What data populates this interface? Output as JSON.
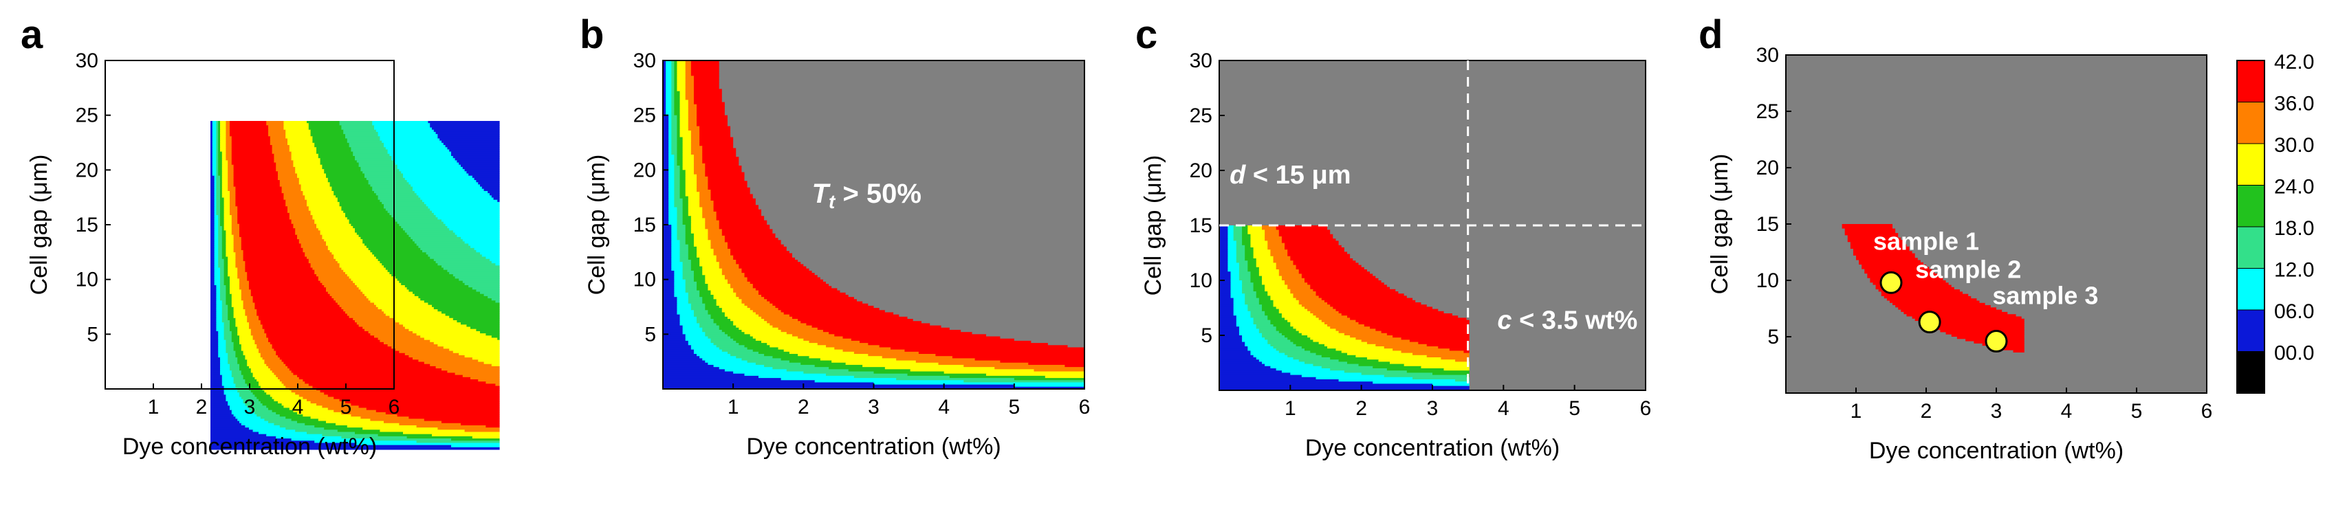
{
  "colors": {
    "levels": [
      "#000000",
      "#0b18d8",
      "#00ffff",
      "#33e08a",
      "#22c21e",
      "#ffff00",
      "#ff8000",
      "#ff0000"
    ],
    "masked": "#808080",
    "dashed": "#ffffff",
    "marker_fill": "#ffff33",
    "marker_edge": "#000000"
  },
  "chart_data": [
    {
      "panel": "a",
      "type": "contour",
      "xlabel": "Dye concentration (wt%)",
      "ylabel": "Cell gap (μm)",
      "xlim": [
        0,
        6
      ],
      "ylim": [
        0,
        30
      ],
      "xticks": [
        "1",
        "2",
        "3",
        "4",
        "5",
        "6"
      ],
      "yticks": [
        "5",
        "10",
        "15",
        "20",
        "25",
        "30"
      ],
      "levels": [
        0,
        6,
        12,
        18,
        24,
        30,
        36,
        42
      ],
      "annotations": []
    },
    {
      "panel": "b",
      "type": "contour",
      "xlabel": "Dye concentration (wt%)",
      "ylabel": "Cell gap (μm)",
      "xlim": [
        0,
        6
      ],
      "ylim": [
        0,
        30
      ],
      "xticks": [
        "1",
        "2",
        "3",
        "4",
        "5",
        "6"
      ],
      "yticks": [
        "5",
        "10",
        "15",
        "20",
        "25",
        "30"
      ],
      "mask": "Tt > 50%",
      "annotations": [
        {
          "x": 2.9,
          "y": 17,
          "prefix": "T",
          "sub": "t",
          "text": " > 50%"
        }
      ]
    },
    {
      "panel": "c",
      "type": "contour",
      "xlabel": "Dye concentration (wt%)",
      "ylabel": "Cell gap (μm)",
      "xlim": [
        0,
        6
      ],
      "ylim": [
        0,
        30
      ],
      "xticks": [
        "1",
        "2",
        "3",
        "4",
        "5",
        "6"
      ],
      "yticks": [
        "5",
        "10",
        "15",
        "20",
        "25",
        "30"
      ],
      "limits": {
        "d_max": 15,
        "c_max": 3.5
      },
      "annotations": [
        {
          "x": 1.0,
          "y": 18.8,
          "prefix": "d",
          "text": " < 15 μm"
        },
        {
          "x": 4.9,
          "y": 5.6,
          "prefix": "c",
          "text": " < 3.5 wt%"
        }
      ]
    },
    {
      "panel": "d",
      "type": "contour",
      "xlabel": "Dye concentration (wt%)",
      "ylabel": "Cell gap (μm)",
      "xlim": [
        0,
        6
      ],
      "ylim": [
        0,
        30
      ],
      "xticks": [
        "1",
        "2",
        "3",
        "4",
        "5",
        "6"
      ],
      "yticks": [
        "5",
        "10",
        "15",
        "20",
        "25",
        "30"
      ],
      "annotations": [
        {
          "x": 2.0,
          "y": 12.7,
          "text": "sample 1"
        },
        {
          "x": 2.6,
          "y": 10.2,
          "text": "sample 2"
        },
        {
          "x": 3.7,
          "y": 7.9,
          "text": "sample 3"
        }
      ],
      "samples": [
        {
          "name": "sample 1",
          "x": 1.5,
          "y": 9.8
        },
        {
          "name": "sample 2",
          "x": 2.05,
          "y": 6.3
        },
        {
          "name": "sample 3",
          "x": 3.0,
          "y": 4.6
        }
      ],
      "colorbar": {
        "labels": [
          "00.0",
          "06.0",
          "12.0",
          "18.0",
          "24.0",
          "30.0",
          "36.0",
          "42.0"
        ]
      }
    }
  ]
}
